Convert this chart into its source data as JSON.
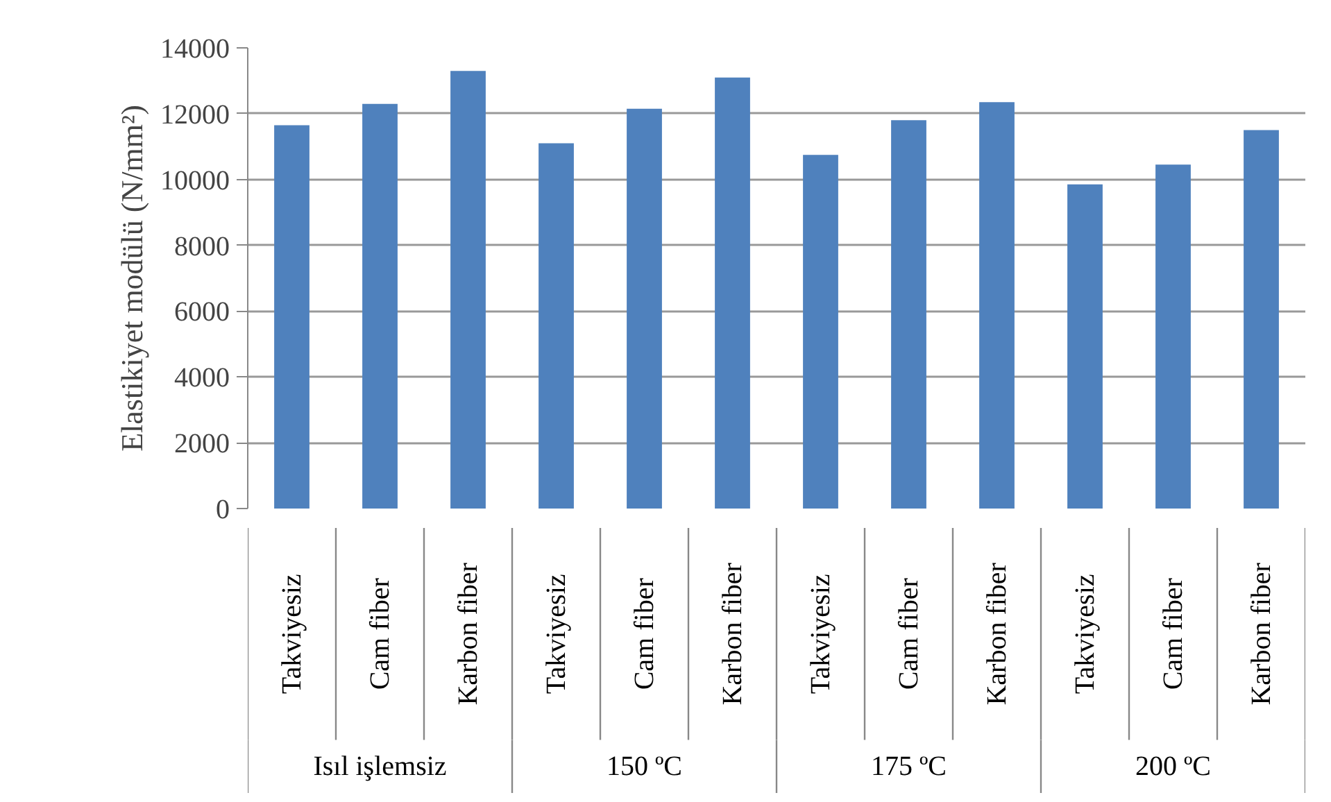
{
  "chart_data": {
    "type": "bar",
    "ylabel": "Elastikiyet modülü (N/mm²)",
    "categories": [
      "Takviyesiz",
      "Cam fiber",
      "Karbon fiber",
      "Takviyesiz",
      "Cam fiber",
      "Karbon fiber",
      "Takviyesiz",
      "Cam fiber",
      "Karbon fiber",
      "Takviyesiz",
      "Cam fiber",
      "Karbon fiber"
    ],
    "values": [
      11650,
      12300,
      13300,
      11100,
      12150,
      13100,
      10750,
      11800,
      12350,
      9850,
      10450,
      11500
    ],
    "color": "#4f81bd",
    "ylim": [
      0,
      14000
    ],
    "yticks": [
      0,
      2000,
      4000,
      6000,
      8000,
      10000,
      12000,
      14000
    ],
    "grid": "y",
    "annotations": [
      "Isıl işlemsiz",
      "150 ºC",
      "175 ºC",
      "200 ºC"
    ]
  }
}
